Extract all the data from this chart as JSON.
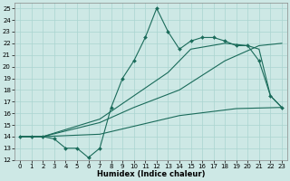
{
  "xlabel": "Humidex (Indice chaleur)",
  "bg_color": "#cde8e5",
  "line_color": "#1a6b5a",
  "grid_color": "#aad4d0",
  "xlim": [
    -0.5,
    23.5
  ],
  "ylim": [
    12,
    25.5
  ],
  "xticks": [
    0,
    1,
    2,
    3,
    4,
    5,
    6,
    7,
    8,
    9,
    10,
    11,
    12,
    13,
    14,
    15,
    16,
    17,
    18,
    19,
    20,
    21,
    22,
    23
  ],
  "yticks": [
    12,
    13,
    14,
    15,
    16,
    17,
    18,
    19,
    20,
    21,
    22,
    23,
    24,
    25
  ],
  "curve_x": [
    0,
    1,
    2,
    3,
    4,
    5,
    6,
    7,
    8,
    9,
    10,
    11,
    12,
    13,
    14,
    15,
    16,
    17,
    18,
    19,
    20,
    21,
    22,
    23
  ],
  "curve_y": [
    14,
    14,
    14,
    13.8,
    13,
    13,
    12.2,
    13,
    16.5,
    19,
    20.5,
    22.5,
    25,
    23,
    21.5,
    22.2,
    22.5,
    22.5,
    22.2,
    21.8,
    21.8,
    20.5,
    17.5,
    16.5
  ],
  "line2_x": [
    0,
    2,
    7,
    14,
    19,
    23
  ],
  "line2_y": [
    14,
    14,
    14.2,
    15.8,
    16.4,
    16.5
  ],
  "line3_x": [
    0,
    2,
    7,
    10,
    14,
    18,
    21,
    23
  ],
  "line3_y": [
    14,
    14,
    15.2,
    16.5,
    18,
    20.5,
    21.8,
    22
  ],
  "line4_x": [
    0,
    2,
    7,
    10,
    13,
    15,
    18,
    20,
    21,
    22,
    23
  ],
  "line4_y": [
    14,
    14,
    15.5,
    17.5,
    19.5,
    21.5,
    22,
    21.8,
    21.5,
    17.5,
    16.5
  ]
}
